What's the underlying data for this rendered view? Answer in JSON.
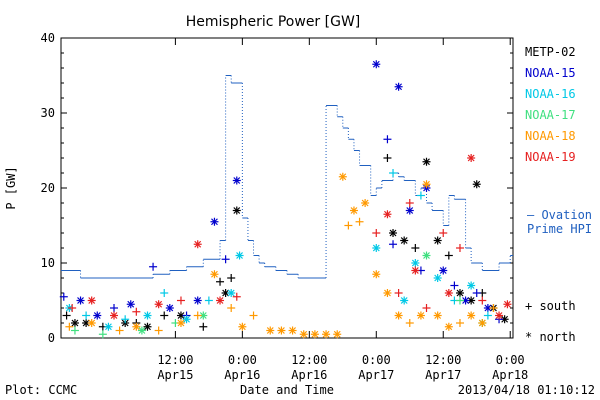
{
  "chart_data": {
    "type": "scatter",
    "title": "Hemispheric Power [GW]",
    "xlabel": "Date and Time",
    "ylabel": "P [GW]",
    "ylim": [
      0,
      40
    ],
    "y_ticks": [
      0,
      10,
      20,
      30,
      40
    ],
    "xlim": [
      "2013-04-14T15:30",
      "2013-04-18T00:30"
    ],
    "x_ticks": [
      {
        "time": "2013-04-15T12:00",
        "line1": "12:00",
        "line2": "Apr15"
      },
      {
        "time": "2013-04-16T00:00",
        "line1": "0:00",
        "line2": "Apr16"
      },
      {
        "time": "2013-04-16T12:00",
        "line1": "12:00",
        "line2": "Apr16"
      },
      {
        "time": "2013-04-17T00:00",
        "line1": "0:00",
        "line2": "Apr17"
      },
      {
        "time": "2013-04-17T12:00",
        "line1": "12:00",
        "line2": "Apr17"
      },
      {
        "time": "2013-04-18T00:00",
        "line1": "0:00",
        "line2": "Apr18"
      }
    ],
    "markers": {
      "south": "+",
      "north": "*"
    },
    "marker_legend": [
      {
        "symbol": "+",
        "label": "south"
      },
      {
        "symbol": "*",
        "label": "north"
      }
    ],
    "series": [
      {
        "name": "METP-02",
        "color": "#000000",
        "points": [
          [
            "2013-04-14T16:30",
            3,
            "+"
          ],
          [
            "2013-04-14T18:00",
            2,
            "*"
          ],
          [
            "2013-04-14T20:00",
            2,
            "*"
          ],
          [
            "2013-04-14T23:00",
            1.5,
            "+"
          ],
          [
            "2013-04-15T03:00",
            2,
            "*"
          ],
          [
            "2013-04-15T05:00",
            2,
            "+"
          ],
          [
            "2013-04-15T07:00",
            1.5,
            "*"
          ],
          [
            "2013-04-15T10:00",
            3,
            "+"
          ],
          [
            "2013-04-15T13:00",
            3,
            "*"
          ],
          [
            "2013-04-15T17:00",
            1.5,
            "+"
          ],
          [
            "2013-04-15T20:00",
            7.5,
            "+"
          ],
          [
            "2013-04-15T22:00",
            8,
            "+"
          ],
          [
            "2013-04-15T23:00",
            17,
            "*"
          ],
          [
            "2013-04-15T21:00",
            6,
            "*"
          ],
          [
            "2013-04-17T02:00",
            24,
            "+"
          ],
          [
            "2013-04-17T03:00",
            14,
            "*"
          ],
          [
            "2013-04-17T05:00",
            13,
            "*"
          ],
          [
            "2013-04-17T07:00",
            12,
            "+"
          ],
          [
            "2013-04-17T09:00",
            23.5,
            "*"
          ],
          [
            "2013-04-17T11:00",
            13,
            "*"
          ],
          [
            "2013-04-17T13:00",
            11,
            "+"
          ],
          [
            "2013-04-17T15:00",
            6,
            "*"
          ],
          [
            "2013-04-17T17:00",
            5,
            "*"
          ],
          [
            "2013-04-17T18:00",
            20.5,
            "*"
          ],
          [
            "2013-04-17T19:00",
            6,
            "+"
          ],
          [
            "2013-04-17T21:00",
            4,
            "*"
          ],
          [
            "2013-04-17T23:00",
            2.5,
            "*"
          ]
        ]
      },
      {
        "name": "NOAA-15",
        "color": "#0000cd",
        "points": [
          [
            "2013-04-14T16:00",
            5.5,
            "+"
          ],
          [
            "2013-04-14T19:00",
            5,
            "*"
          ],
          [
            "2013-04-14T22:00",
            3,
            "*"
          ],
          [
            "2013-04-15T01:00",
            4,
            "+"
          ],
          [
            "2013-04-15T04:00",
            4.5,
            "*"
          ],
          [
            "2013-04-15T08:00",
            9.5,
            "+"
          ],
          [
            "2013-04-15T11:00",
            4,
            "*"
          ],
          [
            "2013-04-15T14:00",
            3,
            "+"
          ],
          [
            "2013-04-15T16:00",
            5,
            "*"
          ],
          [
            "2013-04-15T19:00",
            15.5,
            "*"
          ],
          [
            "2013-04-15T21:00",
            10.5,
            "+"
          ],
          [
            "2013-04-15T23:00",
            21,
            "*"
          ],
          [
            "2013-04-17T00:00",
            36.5,
            "*"
          ],
          [
            "2013-04-17T02:00",
            26.5,
            "+"
          ],
          [
            "2013-04-17T03:00",
            12.5,
            "+"
          ],
          [
            "2013-04-17T04:00",
            33.5,
            "*"
          ],
          [
            "2013-04-17T06:00",
            17,
            "*"
          ],
          [
            "2013-04-17T08:00",
            9,
            "+"
          ],
          [
            "2013-04-17T09:00",
            20,
            "*"
          ],
          [
            "2013-04-17T12:00",
            9,
            "*"
          ],
          [
            "2013-04-17T14:00",
            7,
            "+"
          ],
          [
            "2013-04-17T16:00",
            5,
            "*"
          ],
          [
            "2013-04-17T18:00",
            6,
            "+"
          ],
          [
            "2013-04-17T20:00",
            4,
            "*"
          ],
          [
            "2013-04-17T22:00",
            2.5,
            "+"
          ]
        ]
      },
      {
        "name": "NOAA-16",
        "color": "#00c8e6",
        "points": [
          [
            "2013-04-14T17:00",
            4,
            "*"
          ],
          [
            "2013-04-14T20:00",
            3,
            "+"
          ],
          [
            "2013-04-15T00:00",
            1.5,
            "*"
          ],
          [
            "2013-04-15T03:00",
            2.5,
            "+"
          ],
          [
            "2013-04-15T07:00",
            3,
            "*"
          ],
          [
            "2013-04-15T10:00",
            6,
            "+"
          ],
          [
            "2013-04-15T14:00",
            2.5,
            "*"
          ],
          [
            "2013-04-15T18:00",
            5,
            "+"
          ],
          [
            "2013-04-15T22:00",
            6,
            "*"
          ],
          [
            "2013-04-15T23:30",
            11,
            "*"
          ],
          [
            "2013-04-17T00:00",
            12,
            "*"
          ],
          [
            "2013-04-17T03:00",
            22,
            "+"
          ],
          [
            "2013-04-17T05:00",
            5,
            "*"
          ],
          [
            "2013-04-17T07:00",
            10,
            "*"
          ],
          [
            "2013-04-17T08:00",
            19,
            "+"
          ],
          [
            "2013-04-17T11:00",
            8,
            "*"
          ],
          [
            "2013-04-17T14:00",
            5,
            "+"
          ],
          [
            "2013-04-17T17:00",
            7,
            "*"
          ],
          [
            "2013-04-17T20:00",
            3,
            "+"
          ]
        ]
      },
      {
        "name": "NOAA-17",
        "color": "#40e080",
        "points": [
          [
            "2013-04-14T18:00",
            1,
            "+"
          ],
          [
            "2013-04-14T23:00",
            0.5,
            "+"
          ],
          [
            "2013-04-15T06:00",
            1,
            "*"
          ],
          [
            "2013-04-15T12:00",
            2,
            "+"
          ],
          [
            "2013-04-15T17:00",
            3,
            "*"
          ],
          [
            "2013-04-17T09:00",
            11,
            "*"
          ],
          [
            "2013-04-17T15:00",
            5,
            "+"
          ],
          [
            "2013-04-17T19:00",
            2,
            "*"
          ]
        ]
      },
      {
        "name": "NOAA-18",
        "color": "#ff9900",
        "points": [
          [
            "2013-04-14T17:00",
            1.5,
            "+"
          ],
          [
            "2013-04-14T21:00",
            2,
            "*"
          ],
          [
            "2013-04-15T02:00",
            1,
            "+"
          ],
          [
            "2013-04-15T05:00",
            1.5,
            "*"
          ],
          [
            "2013-04-15T09:00",
            1,
            "+"
          ],
          [
            "2013-04-15T13:00",
            2,
            "*"
          ],
          [
            "2013-04-15T16:00",
            3,
            "+"
          ],
          [
            "2013-04-15T19:00",
            8.5,
            "*"
          ],
          [
            "2013-04-15T22:00",
            4,
            "+"
          ],
          [
            "2013-04-16T00:00",
            1.5,
            "*"
          ],
          [
            "2013-04-16T02:00",
            3,
            "+"
          ],
          [
            "2013-04-16T05:00",
            1,
            "*"
          ],
          [
            "2013-04-16T07:00",
            1,
            "*"
          ],
          [
            "2013-04-16T09:00",
            1,
            "*"
          ],
          [
            "2013-04-16T11:00",
            0.5,
            "*"
          ],
          [
            "2013-04-16T13:00",
            0.5,
            "*"
          ],
          [
            "2013-04-16T15:00",
            0.5,
            "*"
          ],
          [
            "2013-04-16T17:00",
            0.5,
            "*"
          ],
          [
            "2013-04-16T18:00",
            21.5,
            "*"
          ],
          [
            "2013-04-16T19:00",
            15,
            "+"
          ],
          [
            "2013-04-16T20:00",
            17,
            "*"
          ],
          [
            "2013-04-16T21:00",
            15.5,
            "+"
          ],
          [
            "2013-04-16T22:00",
            18,
            "*"
          ],
          [
            "2013-04-17T00:00",
            8.5,
            "*"
          ],
          [
            "2013-04-17T02:00",
            6,
            "*"
          ],
          [
            "2013-04-17T04:00",
            3,
            "*"
          ],
          [
            "2013-04-17T06:00",
            2,
            "+"
          ],
          [
            "2013-04-17T08:00",
            3,
            "*"
          ],
          [
            "2013-04-17T09:00",
            20.5,
            "*"
          ],
          [
            "2013-04-17T11:00",
            3,
            "*"
          ],
          [
            "2013-04-17T13:00",
            1.5,
            "*"
          ],
          [
            "2013-04-17T15:00",
            2,
            "+"
          ],
          [
            "2013-04-17T17:00",
            3,
            "*"
          ],
          [
            "2013-04-17T19:00",
            2,
            "*"
          ],
          [
            "2013-04-17T21:00",
            4,
            "+"
          ]
        ]
      },
      {
        "name": "NOAA-19",
        "color": "#e62020",
        "points": [
          [
            "2013-04-14T17:30",
            4,
            "+"
          ],
          [
            "2013-04-14T21:00",
            5,
            "*"
          ],
          [
            "2013-04-15T01:00",
            3,
            "*"
          ],
          [
            "2013-04-15T05:00",
            3.5,
            "+"
          ],
          [
            "2013-04-15T09:00",
            4.5,
            "*"
          ],
          [
            "2013-04-15T13:00",
            5,
            "+"
          ],
          [
            "2013-04-15T16:00",
            12.5,
            "*"
          ],
          [
            "2013-04-15T20:00",
            5,
            "*"
          ],
          [
            "2013-04-15T23:00",
            5.5,
            "+"
          ],
          [
            "2013-04-17T00:00",
            14,
            "+"
          ],
          [
            "2013-04-17T02:00",
            16.5,
            "*"
          ],
          [
            "2013-04-17T04:00",
            6,
            "+"
          ],
          [
            "2013-04-17T06:00",
            18,
            "+"
          ],
          [
            "2013-04-17T07:00",
            9,
            "*"
          ],
          [
            "2013-04-17T09:00",
            4,
            "+"
          ],
          [
            "2013-04-17T12:00",
            14,
            "+"
          ],
          [
            "2013-04-17T13:00",
            6,
            "*"
          ],
          [
            "2013-04-17T15:00",
            12,
            "+"
          ],
          [
            "2013-04-17T17:00",
            24,
            "*"
          ],
          [
            "2013-04-17T19:00",
            5,
            "+"
          ],
          [
            "2013-04-17T22:00",
            3,
            "*"
          ],
          [
            "2013-04-17T23:30",
            4.5,
            "*"
          ]
        ]
      }
    ],
    "ovation": {
      "name": "— Ovation Prime HPI",
      "legend_lines": [
        "— Ovation",
        "Prime HPI"
      ],
      "color": "#2060c0",
      "points": [
        [
          "2013-04-14T15:30",
          9
        ],
        [
          "2013-04-14T19:00",
          9
        ],
        [
          "2013-04-14T19:00",
          8
        ],
        [
          "2013-04-15T08:00",
          8
        ],
        [
          "2013-04-15T08:00",
          8.5
        ],
        [
          "2013-04-15T11:00",
          8.5
        ],
        [
          "2013-04-15T11:00",
          9
        ],
        [
          "2013-04-15T14:00",
          9
        ],
        [
          "2013-04-15T14:00",
          9.5
        ],
        [
          "2013-04-15T17:00",
          9.5
        ],
        [
          "2013-04-15T17:00",
          10.5
        ],
        [
          "2013-04-15T20:00",
          10.5
        ],
        [
          "2013-04-15T20:00",
          13
        ],
        [
          "2013-04-15T21:00",
          13
        ],
        [
          "2013-04-15T21:00",
          35
        ],
        [
          "2013-04-15T22:00",
          35
        ],
        [
          "2013-04-15T22:00",
          34
        ],
        [
          "2013-04-16T00:00",
          34
        ],
        [
          "2013-04-16T00:00",
          16
        ],
        [
          "2013-04-16T01:00",
          16
        ],
        [
          "2013-04-16T01:00",
          13
        ],
        [
          "2013-04-16T02:00",
          13
        ],
        [
          "2013-04-16T02:00",
          11
        ],
        [
          "2013-04-16T03:00",
          11
        ],
        [
          "2013-04-16T03:00",
          10
        ],
        [
          "2013-04-16T04:00",
          10
        ],
        [
          "2013-04-16T04:00",
          9.5
        ],
        [
          "2013-04-16T06:00",
          9.5
        ],
        [
          "2013-04-16T06:00",
          9
        ],
        [
          "2013-04-16T08:00",
          9
        ],
        [
          "2013-04-16T08:00",
          8.5
        ],
        [
          "2013-04-16T10:00",
          8.5
        ],
        [
          "2013-04-16T10:00",
          8
        ],
        [
          "2013-04-16T15:00",
          8
        ],
        [
          "2013-04-16T15:00",
          31
        ],
        [
          "2013-04-16T17:00",
          31
        ],
        [
          "2013-04-16T17:00",
          29.5
        ],
        [
          "2013-04-16T18:00",
          29.5
        ],
        [
          "2013-04-16T18:00",
          28
        ],
        [
          "2013-04-16T19:00",
          28
        ],
        [
          "2013-04-16T19:00",
          26.5
        ],
        [
          "2013-04-16T20:00",
          26.5
        ],
        [
          "2013-04-16T20:00",
          25
        ],
        [
          "2013-04-16T21:00",
          25
        ],
        [
          "2013-04-16T21:00",
          23
        ],
        [
          "2013-04-16T23:00",
          23
        ],
        [
          "2013-04-16T23:00",
          19
        ],
        [
          "2013-04-17T00:00",
          19
        ],
        [
          "2013-04-17T00:00",
          20
        ],
        [
          "2013-04-17T01:00",
          20
        ],
        [
          "2013-04-17T01:00",
          21
        ],
        [
          "2013-04-17T03:00",
          21
        ],
        [
          "2013-04-17T03:00",
          22
        ],
        [
          "2013-04-17T04:00",
          22
        ],
        [
          "2013-04-17T04:00",
          21.5
        ],
        [
          "2013-04-17T05:00",
          21.5
        ],
        [
          "2013-04-17T05:00",
          21
        ],
        [
          "2013-04-17T07:00",
          21
        ],
        [
          "2013-04-17T07:00",
          19
        ],
        [
          "2013-04-17T08:00",
          19
        ],
        [
          "2013-04-17T08:00",
          20
        ],
        [
          "2013-04-17T09:00",
          20
        ],
        [
          "2013-04-17T09:00",
          18
        ],
        [
          "2013-04-17T10:00",
          18
        ],
        [
          "2013-04-17T10:00",
          17
        ],
        [
          "2013-04-17T12:00",
          17
        ],
        [
          "2013-04-17T12:00",
          15
        ],
        [
          "2013-04-17T13:00",
          15
        ],
        [
          "2013-04-17T13:00",
          19
        ],
        [
          "2013-04-17T14:00",
          19
        ],
        [
          "2013-04-17T14:00",
          18.5
        ],
        [
          "2013-04-17T16:00",
          18.5
        ],
        [
          "2013-04-17T16:00",
          12
        ],
        [
          "2013-04-17T17:00",
          12
        ],
        [
          "2013-04-17T17:00",
          10
        ],
        [
          "2013-04-17T19:00",
          10
        ],
        [
          "2013-04-17T19:00",
          9
        ],
        [
          "2013-04-17T22:00",
          9
        ],
        [
          "2013-04-17T22:00",
          10
        ],
        [
          "2013-04-18T00:00",
          10
        ],
        [
          "2013-04-18T00:00",
          11
        ],
        [
          "2013-04-18T00:30",
          11
        ]
      ]
    }
  },
  "footer": {
    "left": "Plot: CCMC",
    "right": "2013/04/18 01:10:12"
  }
}
